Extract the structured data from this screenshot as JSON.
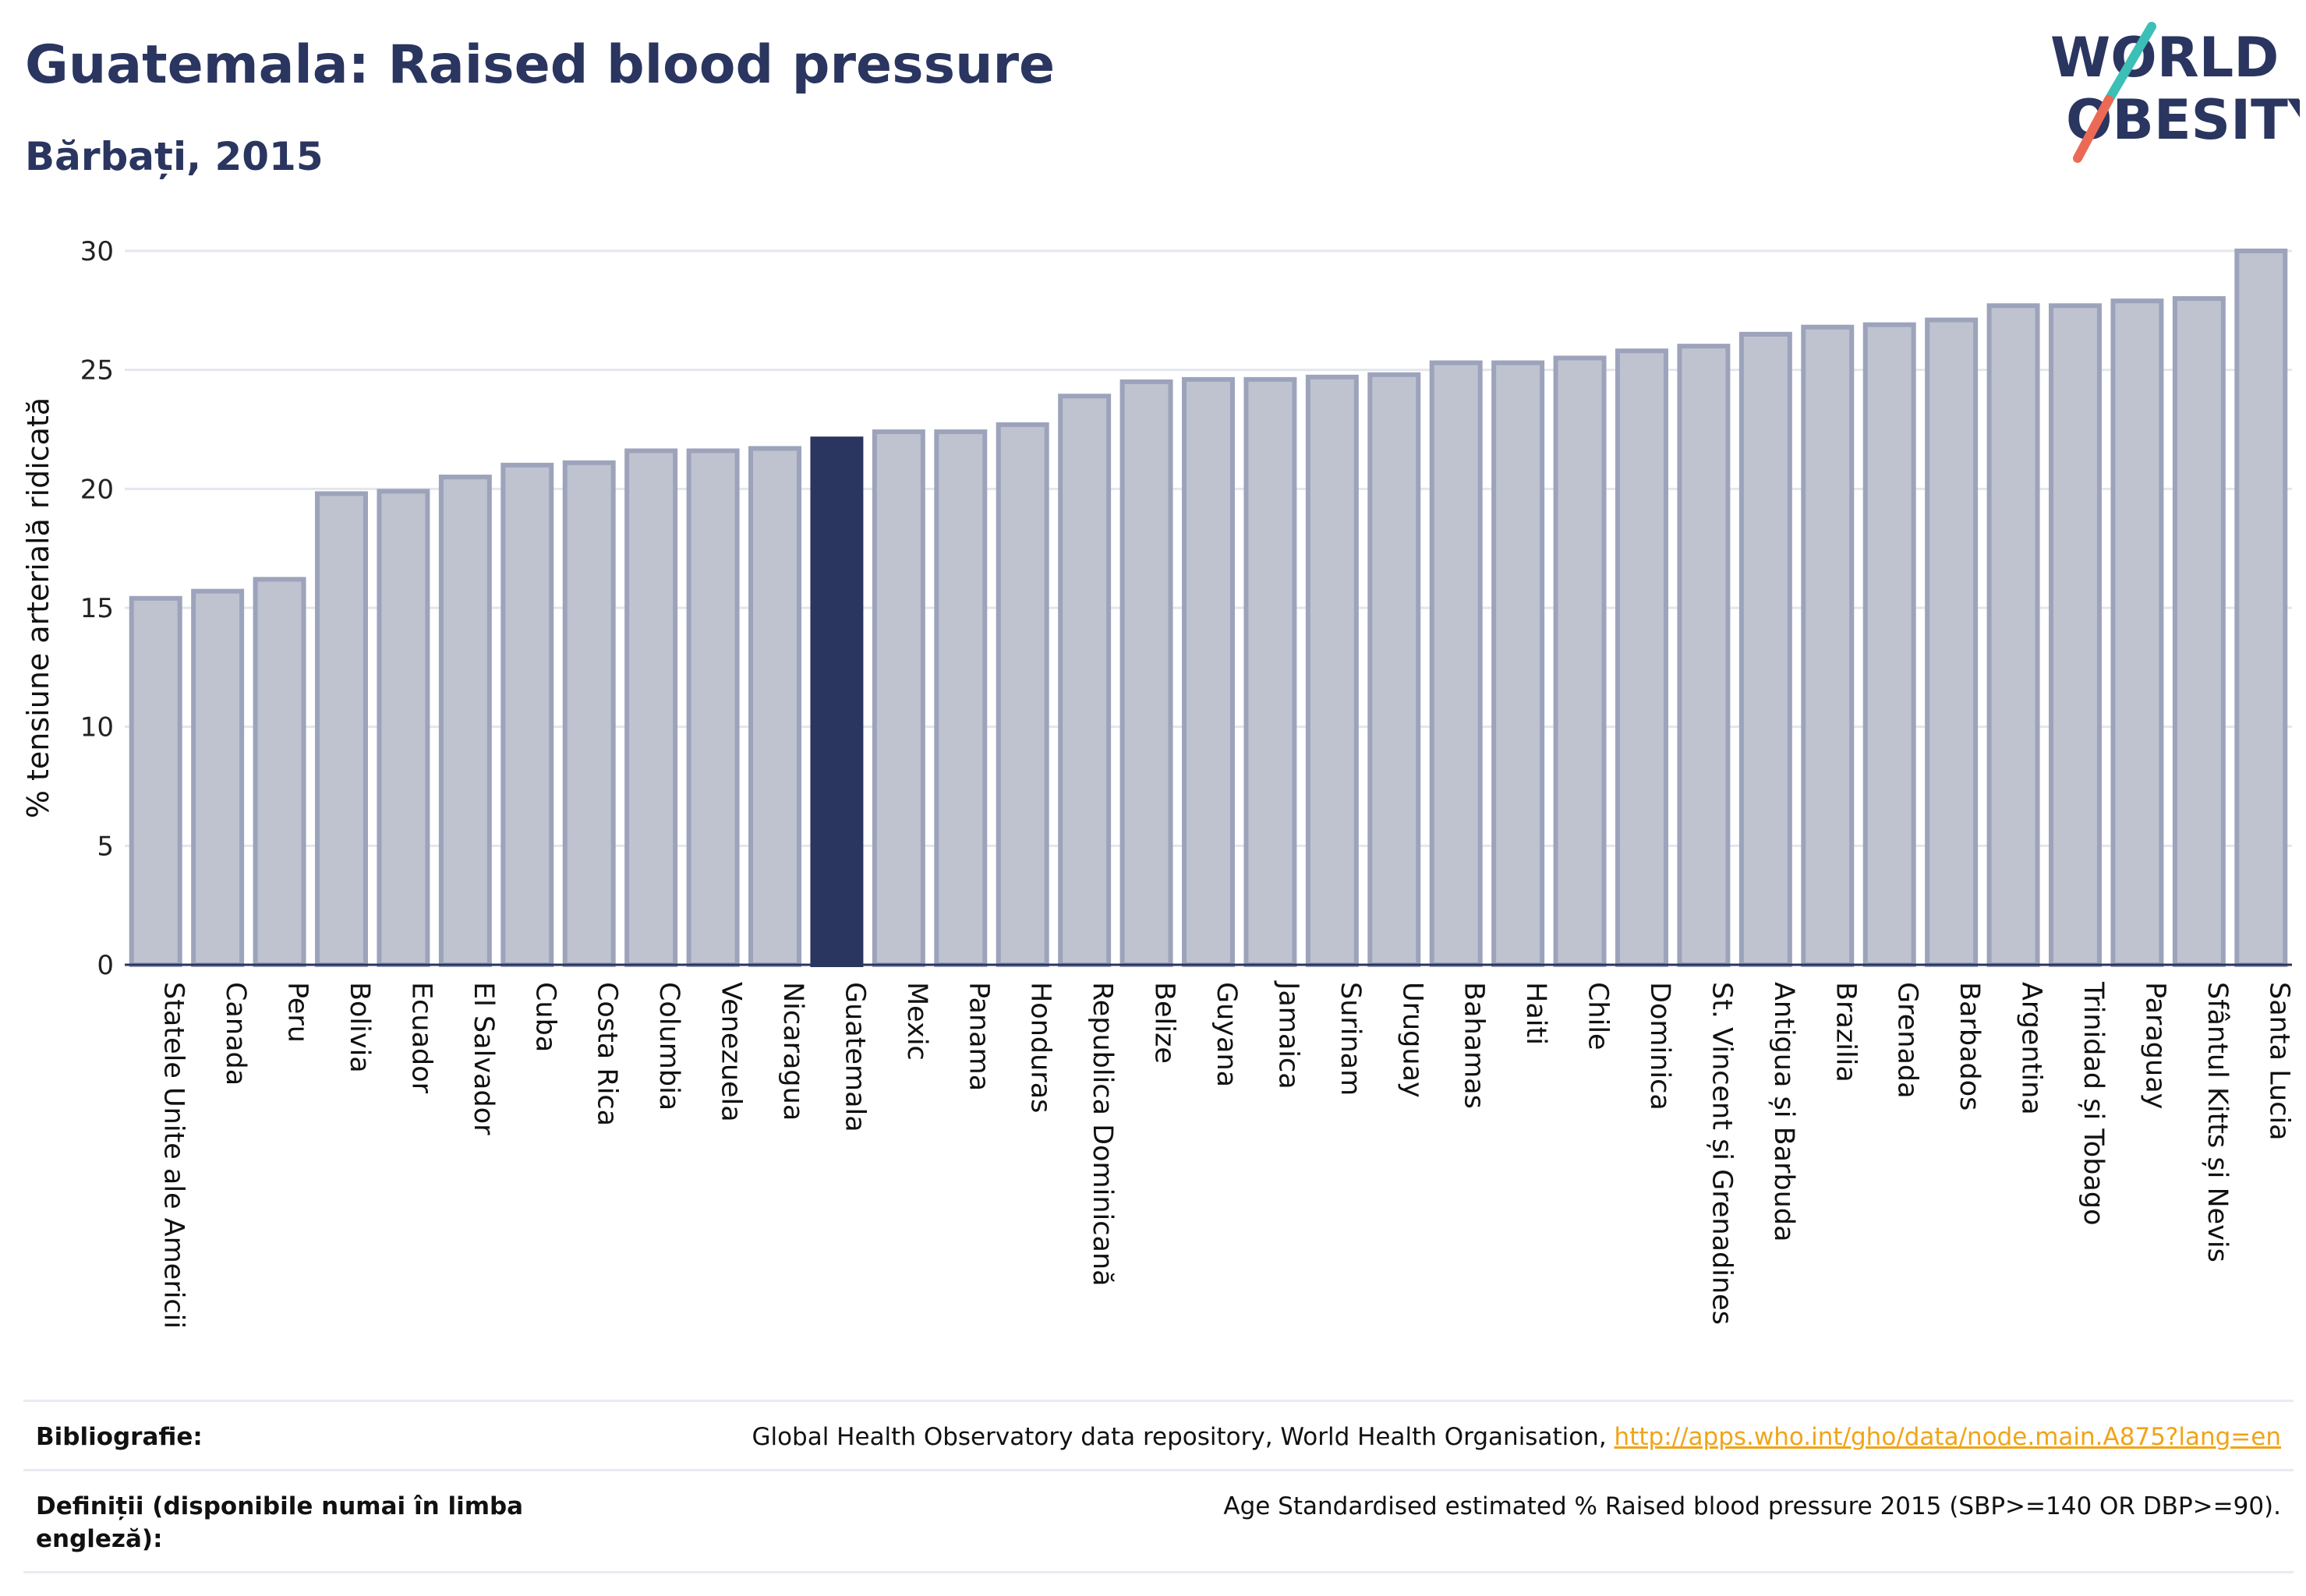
{
  "title": "Guatemala: Raised blood pressure",
  "subtitle": "Bărbați, 2015",
  "logo": {
    "line1": "WORLD",
    "line2": "OBESITY",
    "accent_teal": "#3cbfb7",
    "accent_red": "#ec6a55",
    "color": "#2a3560"
  },
  "colors": {
    "highlight": "#2a3560",
    "bar": "#bfc3d0",
    "bar_edge": "#9ca3bb",
    "grid": "#e4e6ee"
  },
  "chart_data": {
    "type": "bar",
    "ylabel": "% tensiune arterială ridicată",
    "ylim": [
      0,
      30
    ],
    "yticks": [
      0,
      5,
      10,
      15,
      20,
      25,
      30
    ],
    "highlight": "Guatemala",
    "grid": true,
    "categories": [
      "Statele Unite ale Americii",
      "Canada",
      "Peru",
      "Bolivia",
      "Ecuador",
      "El Salvador",
      "Cuba",
      "Costa Rica",
      "Columbia",
      "Venezuela",
      "Nicaragua",
      "Guatemala",
      "Mexic",
      "Panama",
      "Honduras",
      "Republica Dominicană",
      "Belize",
      "Guyana",
      "Jamaica",
      "Surinam",
      "Uruguay",
      "Bahamas",
      "Haiti",
      "Chile",
      "Dominica",
      "St. Vincent și Grenadines",
      "Antigua și Barbuda",
      "Brazilia",
      "Grenada",
      "Barbados",
      "Argentina",
      "Trinidad și Tobago",
      "Paraguay",
      "Sfântul Kitts și Nevis",
      "Santa Lucia"
    ],
    "values": [
      15.4,
      15.7,
      16.2,
      19.8,
      19.9,
      20.5,
      21.0,
      21.1,
      21.6,
      21.6,
      21.7,
      22.1,
      22.4,
      22.4,
      22.7,
      23.9,
      24.5,
      24.6,
      24.6,
      24.7,
      24.8,
      25.3,
      25.3,
      25.5,
      25.8,
      26.0,
      26.5,
      26.8,
      26.9,
      27.1,
      27.7,
      27.7,
      27.9,
      28.0,
      30.0
    ]
  },
  "footer": {
    "bib_label": "Bibliografie:",
    "bib_text": "Global Health Observatory data repository, World Health Organisation, ",
    "bib_link": "http://apps.who.int/gho/data/node.main.A875?lang=en",
    "def_label": "Definiții (disponibile numai în limba engleză):",
    "def_text": "Age Standardised estimated % Raised blood pressure 2015 (SBP>=140 OR DBP>=90)."
  }
}
